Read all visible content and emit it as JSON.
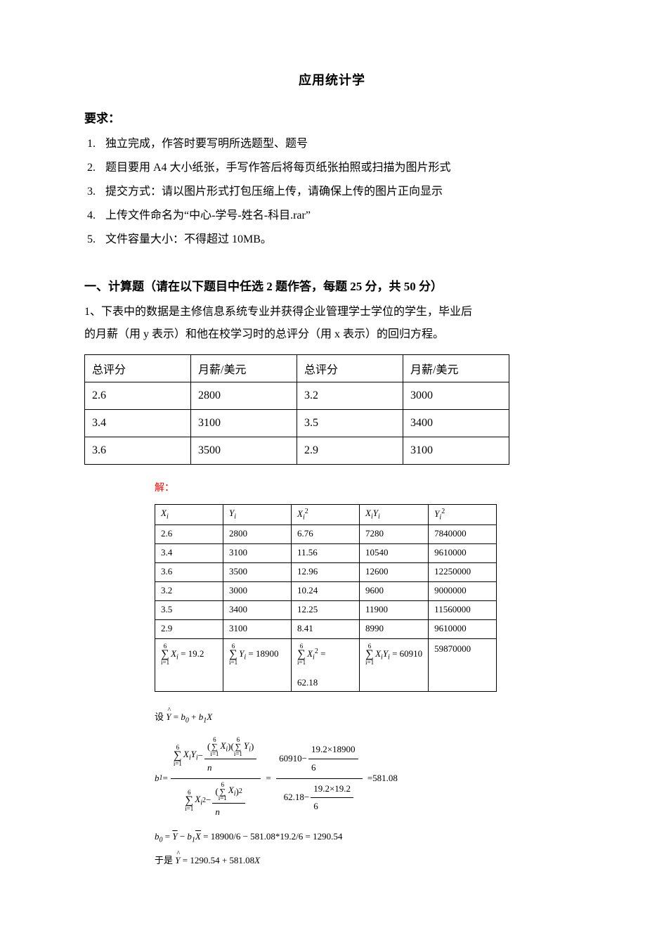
{
  "page": {
    "title": "应用统计学",
    "req_heading": "要求：",
    "requirements": [
      "独立完成，作答时要写明所选题型、题号",
      "题目要用 A4 大小纸张，手写作答后将每页纸张拍照或扫描为图片形式",
      "提交方式：请以图片形式打包压缩上传，请确保上传的图片正向显示",
      "上传文件命名为“中心-学号-姓名-科目.rar”",
      "文件容量大小：不得超过 10MB。"
    ],
    "calc_heading": "一、计算题（请在以下题目中任选 2 题作答，每题 25 分，共 50 分）",
    "q1_text_a": "1、下表中的数据是主修信息系统专业并获得企业管理学士学位的学生，毕业后",
    "q1_text_b": "的月薪（用 y 表示）和他在校学习时的总评分（用 x 表示）的回归方程。",
    "data_table": {
      "columns": [
        "总评分",
        "月薪/美元",
        "总评分",
        "月薪/美元"
      ],
      "rows": [
        [
          "2.6",
          "2800",
          "3.2",
          "3000"
        ],
        [
          "3.4",
          "3100",
          "3.5",
          "3400"
        ],
        [
          "3.6",
          "3500",
          "2.9",
          "3100"
        ]
      ],
      "border_color": "#000000",
      "background_color": "#ffffff",
      "col_min_width": 130,
      "fontsize": 16
    },
    "solution_label": "解：",
    "solution_label_color": "#ff0000",
    "calc_table": {
      "columns": [
        "Xᵢ",
        "Yᵢ",
        "Xᵢ²",
        "XᵢYᵢ",
        "Yᵢ²"
      ],
      "rows": [
        [
          "2.6",
          "2800",
          "6.76",
          "7280",
          "7840000"
        ],
        [
          "3.4",
          "3100",
          "11.56",
          "10540",
          "9610000"
        ],
        [
          "3.6",
          "3500",
          "12.96",
          "12600",
          "12250000"
        ],
        [
          "3.2",
          "3000",
          "10.24",
          "9600",
          "9000000"
        ],
        [
          "3.5",
          "3400",
          "12.25",
          "11900",
          "11560000"
        ],
        [
          "2.9",
          "3100",
          "8.41",
          "8990",
          "9610000"
        ]
      ],
      "sums": {
        "sum_x": "19.2",
        "sum_y": "18900",
        "sum_x2_extra": "62.18",
        "sum_xy": "60910",
        "sum_y2": "59870000"
      },
      "border_color": "#000000",
      "fontsize": 13,
      "col_min_width": 80
    },
    "math": {
      "regression_setup": "设 Ŷ = b₀ + b₁X",
      "b1_num_left": "60910",
      "b1_sub_top": "19.2×18900",
      "b1_sub_bot_n": "6",
      "b1_den_left": "62.18",
      "b1_den_sub_top": "19.2×19.2",
      "b1_den_sub_bot": "6",
      "b1_result": "581.08",
      "b0_text_a": "b₀ = Ȳ − b₁X̄ = 18900/6 − 581.08*19.2/6 = 1290.54",
      "final_line": "于是 Ŷ = 1290.54 + 581.08X"
    }
  }
}
